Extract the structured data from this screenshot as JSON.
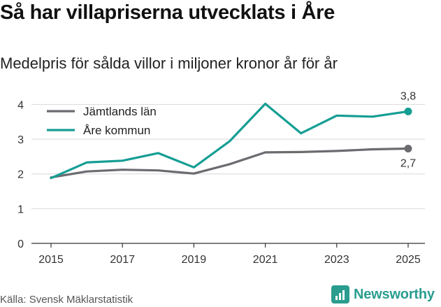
{
  "chart_data": {
    "type": "line",
    "title": "Så har villapriserna utvecklats i Åre",
    "subtitle": "Medelpris för sålda villor i miljoner kronor år för år",
    "x": [
      2015,
      2016,
      2017,
      2018,
      2019,
      2020,
      2021,
      2022,
      2023,
      2024,
      2025
    ],
    "xticks": [
      "2015",
      "2017",
      "2019",
      "2021",
      "2023",
      "2025"
    ],
    "yticks": [
      "0",
      "1",
      "2",
      "3",
      "4"
    ],
    "ylim": [
      0,
      4.25
    ],
    "grid": true,
    "legend_position": "top-left",
    "series": [
      {
        "name": "Jämtlands län",
        "color": "#6b6b70",
        "values": [
          1.9,
          2.07,
          2.12,
          2.1,
          2.01,
          2.28,
          2.62,
          2.63,
          2.66,
          2.71,
          2.73
        ],
        "end_label": "2,7"
      },
      {
        "name": "Åre kommun",
        "color": "#159e94",
        "values": [
          1.88,
          2.33,
          2.38,
          2.6,
          2.19,
          2.94,
          4.02,
          3.17,
          3.68,
          3.65,
          3.8
        ],
        "end_label": "3,8"
      }
    ]
  },
  "source": "Källa: Svensk Mäklarstatistik",
  "brand": {
    "name": "Newsworthy",
    "color": "#2a9d8f"
  }
}
